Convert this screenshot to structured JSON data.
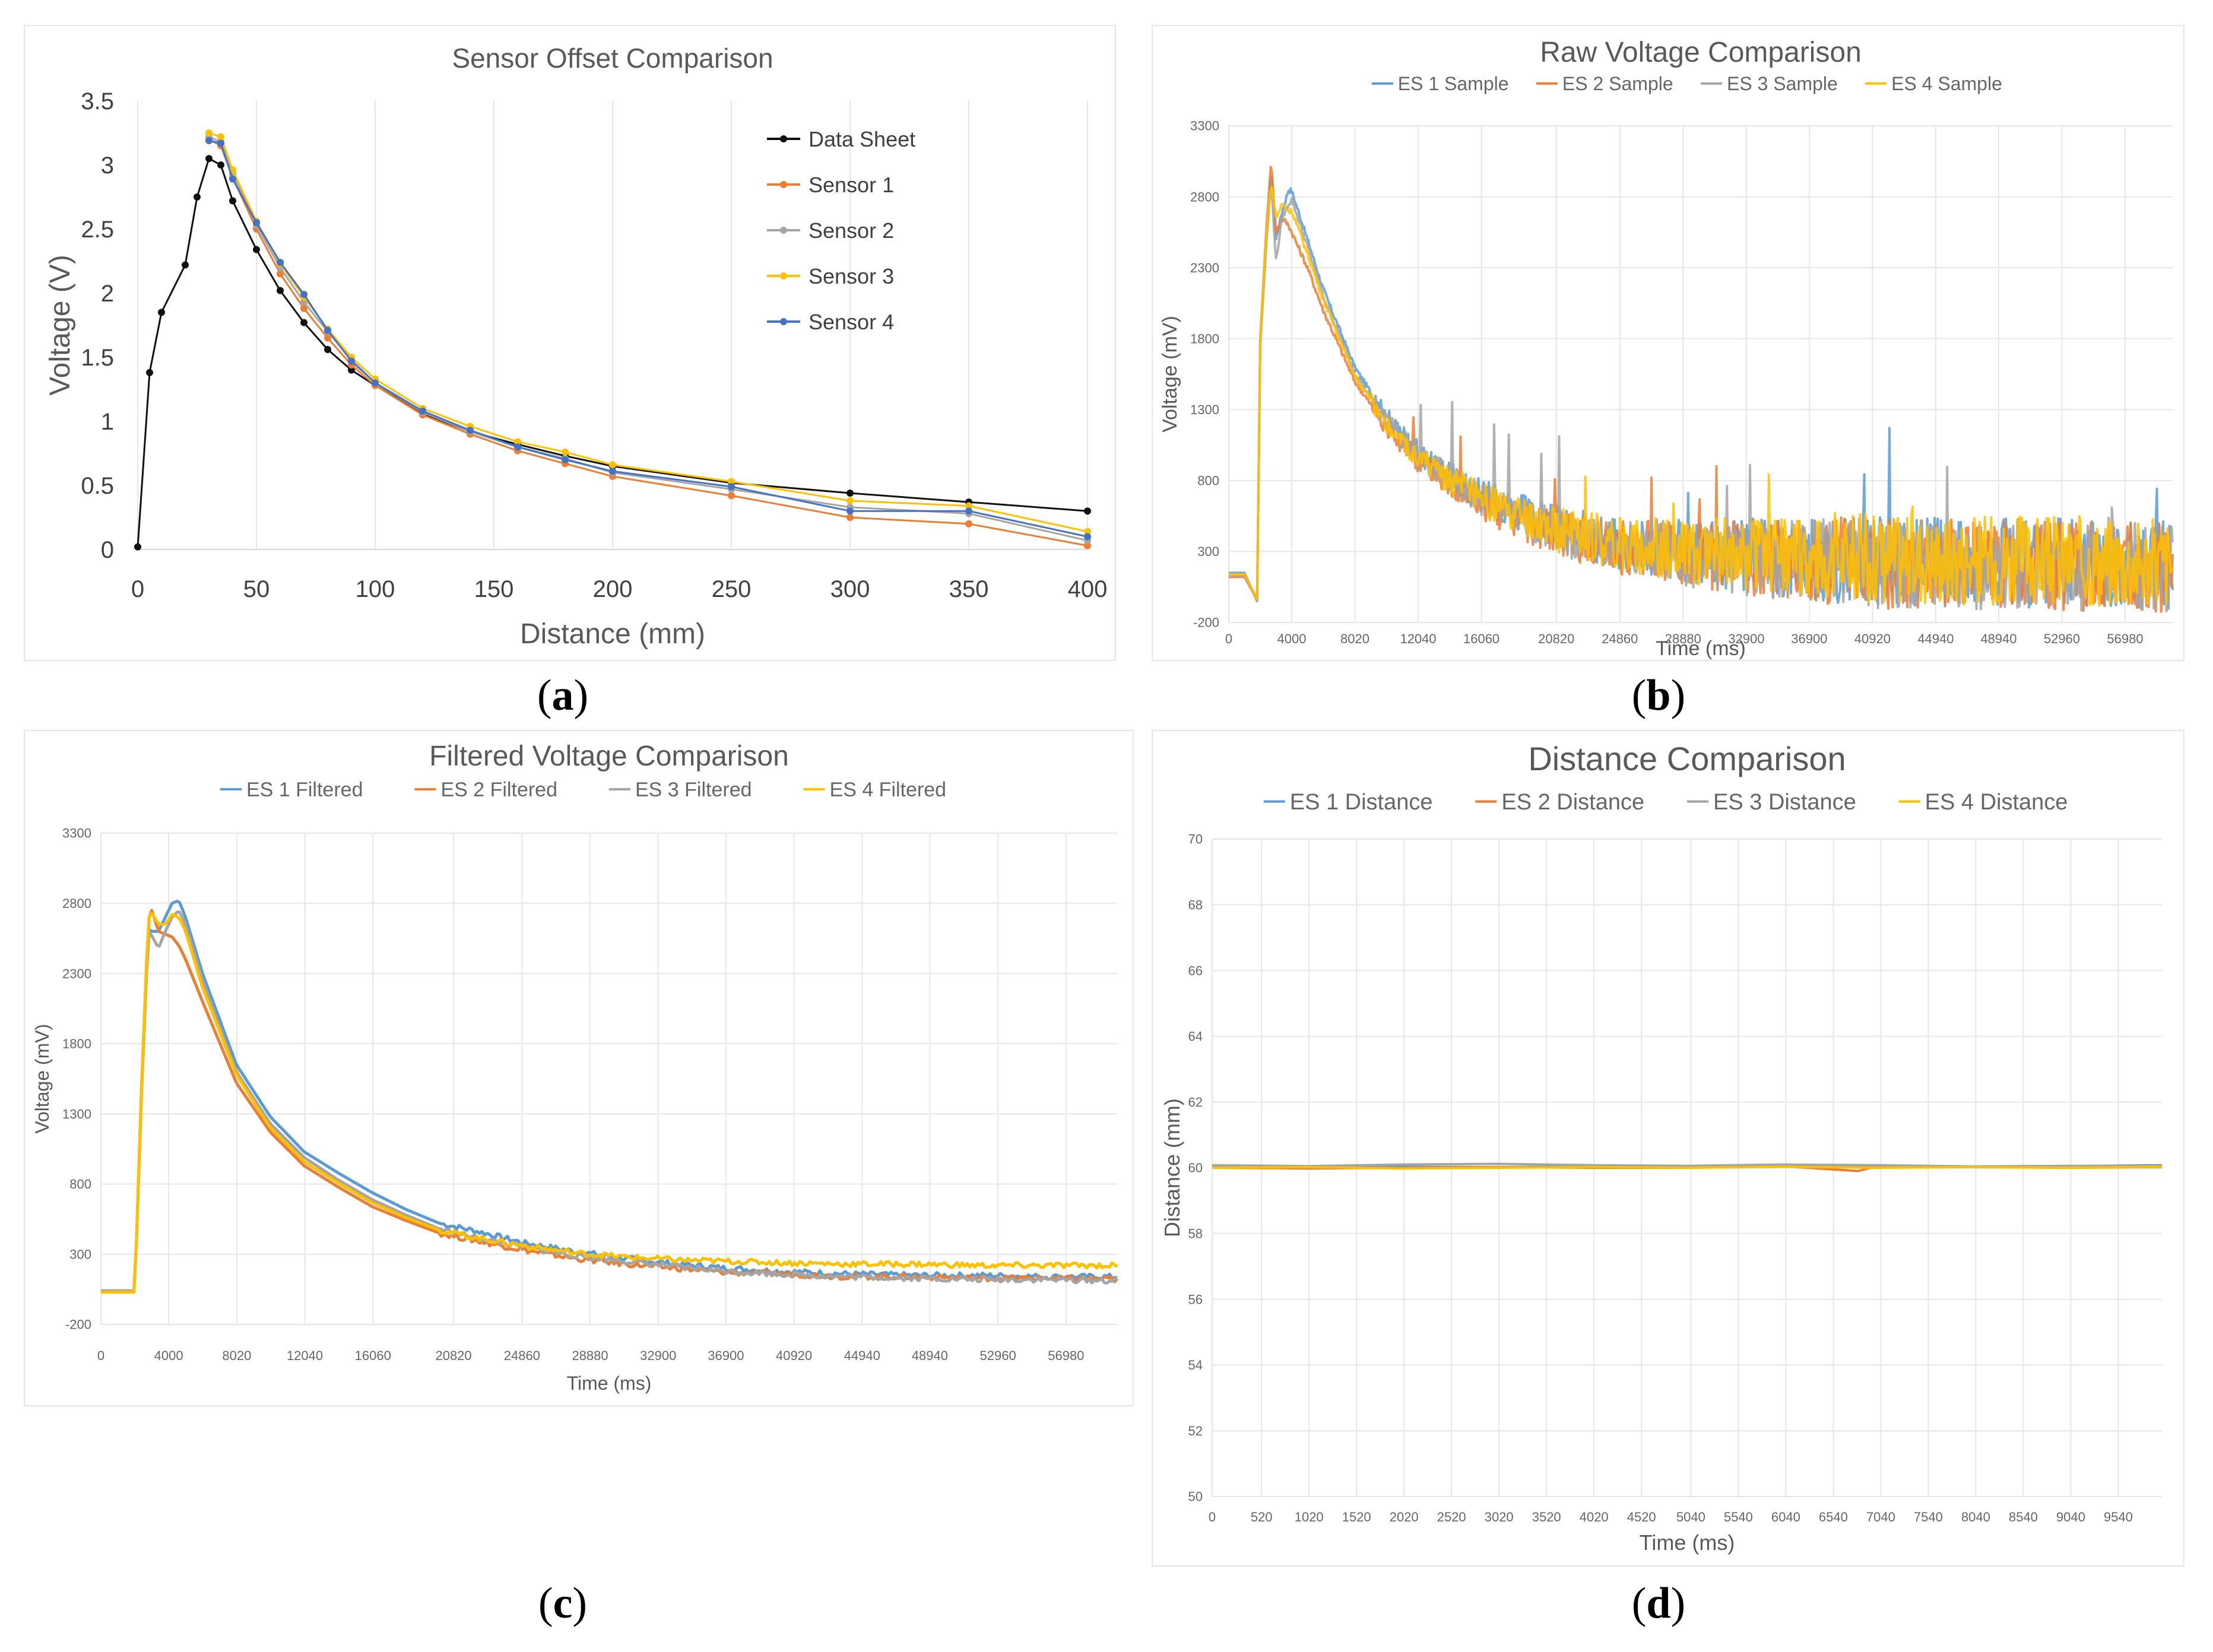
{
  "captions": {
    "a": "a",
    "b": "b",
    "c": "c",
    "d": "d"
  },
  "chart_data": [
    {
      "id": "a",
      "type": "line",
      "title": "Sensor Offset Comparison",
      "xlabel": "Distance (mm)",
      "ylabel": "Voltage (V)",
      "xlim": [
        0,
        400
      ],
      "ylim": [
        0,
        3.5
      ],
      "xticks": [
        0,
        50,
        100,
        150,
        200,
        250,
        300,
        350,
        400
      ],
      "yticks": [
        0,
        0.5,
        1,
        1.5,
        2,
        2.5,
        3,
        3.5
      ],
      "ytick_labels": [
        "0",
        "0.5",
        "1",
        "1.5",
        "2",
        "2.5",
        "3",
        "3.5"
      ],
      "grid": "vertical",
      "legend_position": "top-right",
      "markers": true,
      "series": [
        {
          "name": "Data Sheet",
          "color": "#111111",
          "x": [
            0,
            5,
            10,
            20,
            25,
            30,
            35,
            40,
            50,
            60,
            70,
            80,
            90,
            100,
            120,
            140,
            160,
            180,
            200,
            250,
            300,
            350,
            400
          ],
          "y": [
            0.02,
            1.38,
            1.85,
            2.22,
            2.75,
            3.05,
            3.0,
            2.72,
            2.34,
            2.02,
            1.77,
            1.56,
            1.4,
            1.28,
            1.06,
            0.92,
            0.82,
            0.73,
            0.65,
            0.52,
            0.44,
            0.37,
            0.3
          ]
        },
        {
          "name": "Sensor 1",
          "color": "#ed7d31",
          "x": [
            30,
            35,
            40,
            50,
            60,
            70,
            80,
            90,
            100,
            120,
            140,
            160,
            180,
            200,
            250,
            300,
            350,
            400
          ],
          "y": [
            3.2,
            3.15,
            2.9,
            2.5,
            2.15,
            1.88,
            1.65,
            1.44,
            1.28,
            1.05,
            0.9,
            0.77,
            0.67,
            0.57,
            0.42,
            0.25,
            0.2,
            0.03
          ]
        },
        {
          "name": "Sensor 2",
          "color": "#a5a5a5",
          "x": [
            30,
            35,
            40,
            50,
            60,
            70,
            80,
            90,
            100,
            120,
            140,
            160,
            180,
            200,
            250,
            300,
            350,
            400
          ],
          "y": [
            3.22,
            3.18,
            2.93,
            2.53,
            2.2,
            1.93,
            1.7,
            1.48,
            1.3,
            1.07,
            0.92,
            0.8,
            0.71,
            0.6,
            0.47,
            0.33,
            0.28,
            0.07
          ]
        },
        {
          "name": "Sensor 3",
          "color": "#ffc000",
          "x": [
            30,
            35,
            40,
            50,
            60,
            70,
            80,
            90,
            100,
            120,
            140,
            160,
            180,
            200,
            250,
            300,
            350,
            400
          ],
          "y": [
            3.25,
            3.22,
            2.96,
            2.56,
            2.23,
            1.97,
            1.72,
            1.5,
            1.33,
            1.1,
            0.96,
            0.84,
            0.76,
            0.66,
            0.53,
            0.38,
            0.34,
            0.14
          ]
        },
        {
          "name": "Sensor 4",
          "color": "#4472c4",
          "x": [
            30,
            35,
            40,
            50,
            60,
            70,
            80,
            90,
            100,
            120,
            140,
            160,
            180,
            200,
            250,
            300,
            350,
            400
          ],
          "y": [
            3.19,
            3.17,
            2.89,
            2.55,
            2.24,
            1.99,
            1.71,
            1.47,
            1.3,
            1.08,
            0.93,
            0.8,
            0.7,
            0.61,
            0.49,
            0.3,
            0.3,
            0.1
          ]
        }
      ]
    },
    {
      "id": "b",
      "type": "line",
      "title": "Raw Voltage Comparison",
      "xlabel": "Time (ms)",
      "ylabel": "Voltage (mV)",
      "xlim": [
        0,
        60000
      ],
      "ylim": [
        -200,
        3300
      ],
      "xticks": [
        0,
        4000,
        8020,
        12040,
        16060,
        20820,
        24860,
        28880,
        32900,
        36900,
        40920,
        44940,
        48940,
        52960,
        56980
      ],
      "xtick_labels": [
        "0",
        "4000",
        "8020",
        "12040",
        "16060",
        "20820",
        "24860",
        "28880",
        "32900",
        "36900",
        "40920",
        "44940",
        "48940",
        "52960",
        "56980"
      ],
      "yticks": [
        -200,
        300,
        800,
        1300,
        1800,
        2300,
        2800,
        3300
      ],
      "grid": "both",
      "legend_position": "top",
      "noisy": true,
      "series": [
        {
          "name": "ES 1 Sample",
          "color": "#5b9bd5",
          "x": [
            0,
            1000,
            1800,
            2000,
            2400,
            2700,
            3000,
            3400,
            3800,
            4000,
            5000,
            6000,
            8000,
            10000,
            12000,
            14000,
            16000,
            18000,
            20000,
            22000,
            25000,
            30000,
            35000,
            40000,
            45000,
            50000,
            55000,
            60000
          ],
          "y": [
            150,
            150,
            -50,
            1800,
            2500,
            3000,
            2500,
            2700,
            2850,
            2840,
            2500,
            2150,
            1600,
            1250,
            1000,
            850,
            700,
            600,
            500,
            430,
            350,
            290,
            260,
            240,
            230,
            220,
            210,
            200
          ]
        },
        {
          "name": "ES 2 Sample",
          "color": "#ed7d31",
          "x": [
            0,
            1000,
            1800,
            2000,
            2400,
            2700,
            3000,
            3400,
            3800,
            4000,
            5000,
            6000,
            8000,
            10000,
            12000,
            14000,
            16000,
            18000,
            20000,
            22000,
            25000,
            30000,
            35000,
            40000,
            45000,
            50000,
            55000,
            60000
          ],
          "y": [
            120,
            120,
            -40,
            1800,
            2600,
            3050,
            2550,
            2650,
            2600,
            2550,
            2300,
            2000,
            1500,
            1180,
            940,
            790,
            650,
            540,
            460,
            400,
            330,
            270,
            240,
            220,
            210,
            200,
            190,
            180
          ]
        },
        {
          "name": "ES 3 Sample",
          "color": "#a5a5a5",
          "x": [
            0,
            1000,
            1800,
            2000,
            2400,
            2700,
            3000,
            3400,
            3800,
            4000,
            5000,
            6000,
            8000,
            10000,
            12000,
            14000,
            16000,
            18000,
            20000,
            22000,
            25000,
            30000,
            35000,
            40000,
            45000,
            50000,
            55000,
            60000
          ],
          "y": [
            130,
            130,
            -30,
            1750,
            2500,
            2900,
            2350,
            2650,
            2750,
            2780,
            2450,
            2100,
            1560,
            1220,
            970,
            820,
            680,
            570,
            480,
            410,
            340,
            270,
            240,
            220,
            210,
            200,
            190,
            180
          ]
        },
        {
          "name": "ES 4 Sample",
          "color": "#ffc000",
          "x": [
            0,
            1000,
            1800,
            2000,
            2400,
            2700,
            3000,
            3400,
            3800,
            4000,
            5000,
            6000,
            8000,
            10000,
            12000,
            14000,
            16000,
            18000,
            20000,
            22000,
            25000,
            30000,
            35000,
            40000,
            45000,
            50000,
            55000,
            60000
          ],
          "y": [
            140,
            140,
            -40,
            1800,
            2550,
            2900,
            2650,
            2750,
            2700,
            2700,
            2400,
            2080,
            1540,
            1200,
            960,
            810,
            670,
            560,
            480,
            420,
            350,
            300,
            280,
            260,
            250,
            240,
            230,
            220
          ]
        }
      ]
    },
    {
      "id": "c",
      "type": "line",
      "title": "Filtered Voltage Comparison",
      "xlabel": "Time (ms)",
      "ylabel": "Voltage (mV)",
      "xlim": [
        0,
        60000
      ],
      "ylim": [
        -200,
        3300
      ],
      "xticks": [
        0,
        4000,
        8020,
        12040,
        16060,
        20820,
        24860,
        28880,
        32900,
        36900,
        40920,
        44940,
        48940,
        52960,
        56980
      ],
      "xtick_labels": [
        "0",
        "4000",
        "8020",
        "12040",
        "16060",
        "20820",
        "24860",
        "28880",
        "32900",
        "36900",
        "40920",
        "44940",
        "48940",
        "52960",
        "56980"
      ],
      "yticks": [
        -200,
        300,
        800,
        1300,
        1800,
        2300,
        2800,
        3300
      ],
      "grid": "both",
      "legend_position": "top",
      "series": [
        {
          "name": "ES 1 Filtered",
          "color": "#5b9bd5",
          "x": [
            0,
            2000,
            2400,
            2800,
            3000,
            3400,
            3800,
            4200,
            4600,
            5000,
            6000,
            8000,
            10000,
            12000,
            14000,
            16000,
            18000,
            20000,
            22000,
            25000,
            28000,
            31000,
            34000,
            37000,
            40000,
            44000,
            48000,
            52000,
            56000,
            60000
          ],
          "y": [
            30,
            30,
            1500,
            2620,
            2600,
            2600,
            2700,
            2800,
            2820,
            2700,
            2300,
            1650,
            1280,
            1030,
            880,
            740,
            620,
            520,
            470,
            380,
            320,
            270,
            230,
            200,
            180,
            160,
            150,
            150,
            140,
            140
          ]
        },
        {
          "name": "ES 2 Filtered",
          "color": "#ed7d31",
          "x": [
            0,
            2000,
            2400,
            2800,
            3000,
            3400,
            3800,
            4200,
            4600,
            5000,
            6000,
            8000,
            10000,
            12000,
            14000,
            16000,
            18000,
            20000,
            22000,
            25000,
            28000,
            31000,
            34000,
            37000,
            40000,
            44000,
            48000,
            52000,
            56000,
            60000
          ],
          "y": [
            40,
            40,
            1500,
            2680,
            2750,
            2600,
            2580,
            2560,
            2500,
            2400,
            2100,
            1520,
            1170,
            930,
            780,
            640,
            540,
            450,
            400,
            330,
            270,
            230,
            200,
            170,
            160,
            140,
            140,
            130,
            130,
            120
          ]
        },
        {
          "name": "ES 3 Filtered",
          "color": "#a5a5a5",
          "x": [
            0,
            2000,
            2400,
            2800,
            3000,
            3400,
            3800,
            4200,
            4600,
            5000,
            6000,
            8000,
            10000,
            12000,
            14000,
            16000,
            18000,
            20000,
            22000,
            25000,
            28000,
            31000,
            34000,
            37000,
            40000,
            44000,
            48000,
            52000,
            56000,
            60000
          ],
          "y": [
            40,
            40,
            1450,
            2600,
            2570,
            2480,
            2600,
            2700,
            2750,
            2650,
            2250,
            1600,
            1230,
            990,
            830,
            690,
            580,
            480,
            420,
            350,
            290,
            250,
            210,
            180,
            160,
            140,
            130,
            120,
            120,
            110
          ]
        },
        {
          "name": "ES 4 Filtered",
          "color": "#ffc000",
          "x": [
            0,
            2000,
            2400,
            2800,
            3000,
            3400,
            3800,
            4200,
            4600,
            5000,
            6000,
            8000,
            10000,
            12000,
            14000,
            16000,
            18000,
            20000,
            22000,
            25000,
            28000,
            31000,
            34000,
            37000,
            40000,
            44000,
            48000,
            52000,
            56000,
            60000
          ],
          "y": [
            30,
            30,
            1500,
            2700,
            2730,
            2650,
            2650,
            2720,
            2700,
            2600,
            2200,
            1580,
            1200,
            960,
            810,
            670,
            560,
            470,
            420,
            360,
            310,
            280,
            260,
            250,
            240,
            230,
            230,
            220,
            220,
            220
          ]
        }
      ]
    },
    {
      "id": "d",
      "type": "line",
      "title": "Distance Comparison",
      "xlabel": "Time (ms)",
      "ylabel": "Distance (mm)",
      "xlim": [
        0,
        10000
      ],
      "ylim": [
        50,
        70
      ],
      "xticks": [
        0,
        520,
        1020,
        1520,
        2020,
        2520,
        3020,
        3520,
        4020,
        4520,
        5040,
        5540,
        6040,
        6540,
        7040,
        7540,
        8040,
        8540,
        9040,
        9540
      ],
      "xtick_labels": [
        "0",
        "520",
        "1020",
        "1520",
        "2020",
        "2520",
        "3020",
        "3520",
        "4020",
        "4520",
        "5040",
        "5540",
        "6040",
        "6540",
        "7040",
        "7540",
        "8040",
        "8540",
        "9040",
        "9540"
      ],
      "yticks": [
        50,
        52,
        54,
        56,
        58,
        60,
        62,
        64,
        66,
        68,
        70
      ],
      "grid": "both",
      "legend_position": "top",
      "series": [
        {
          "name": "ES 1 Distance",
          "color": "#5b9bd5",
          "x": [
            0,
            1000,
            2000,
            3000,
            4000,
            5000,
            6000,
            7000,
            8000,
            9000,
            10000
          ],
          "y": [
            60.05,
            60.02,
            60.03,
            60.02,
            60.04,
            60.03,
            60.06,
            60.05,
            60.03,
            60.05,
            60.08
          ]
        },
        {
          "name": "ES 2 Distance",
          "color": "#ed7d31",
          "x": [
            0,
            1000,
            2000,
            3000,
            4000,
            5000,
            6000,
            6800,
            7000,
            8000,
            9000,
            10000
          ],
          "y": [
            60.0,
            59.98,
            60.0,
            60.02,
            60.0,
            60.0,
            60.05,
            59.9,
            60.05,
            60.02,
            60.0,
            60.02
          ]
        },
        {
          "name": "ES 3 Distance",
          "color": "#a5a5a5",
          "x": [
            0,
            1000,
            2000,
            3000,
            4000,
            5000,
            6000,
            7000,
            8000,
            9000,
            10000
          ],
          "y": [
            60.08,
            60.05,
            60.1,
            60.12,
            60.08,
            60.06,
            60.1,
            60.08,
            60.04,
            60.06,
            60.05
          ]
        },
        {
          "name": "ES 4 Distance",
          "color": "#ffc000",
          "x": [
            0,
            1000,
            2000,
            3000,
            4000,
            5000,
            6000,
            7000,
            8000,
            9000,
            10000
          ],
          "y": [
            60.0,
            60.02,
            59.98,
            60.0,
            60.02,
            60.0,
            60.03,
            60.0,
            60.02,
            60.0,
            60.03
          ]
        }
      ]
    }
  ]
}
